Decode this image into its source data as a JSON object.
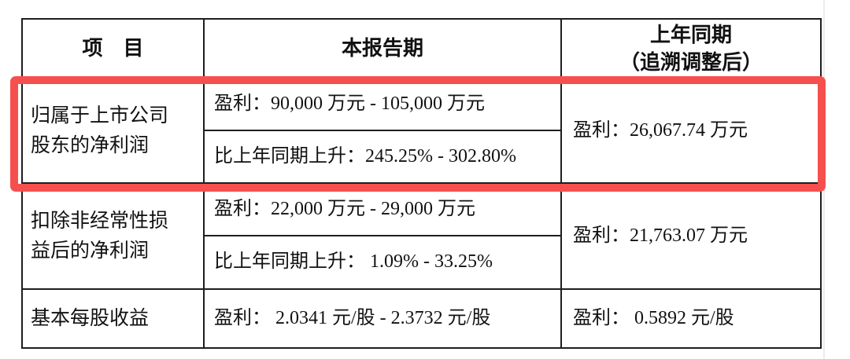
{
  "colors": {
    "table_border": "#1e1e1e",
    "text": "#111111",
    "highlight_red": "#f5504e",
    "page_edge_line": "#ececec"
  },
  "table": {
    "header": {
      "item": "项　目",
      "current_period": "本报告期",
      "prior_period_line1": "上年同期",
      "prior_period_line2": "（追溯调整后）"
    },
    "rows": [
      {
        "item": "归属于上市公司股东的净利润",
        "profit": "盈利：90,000 万元 - 105,000 万元",
        "change": "比上年同期上升：245.25% - 302.80%",
        "prior": "盈利：26,067.74 万元",
        "highlighted": true
      },
      {
        "item": "扣除非经常性损益后的净利润",
        "profit": "盈利：22,000 万元 - 29,000 万元",
        "change": "比上年同期上升： 1.09% - 33.25%",
        "prior": "盈利：21,763.07 万元",
        "highlighted": false
      },
      {
        "item": "基本每股收益",
        "profit": "盈利： 2.0341 元/股 -  2.3732 元/股",
        "prior": "盈利： 0.5892 元/股",
        "highlighted": false
      }
    ]
  }
}
